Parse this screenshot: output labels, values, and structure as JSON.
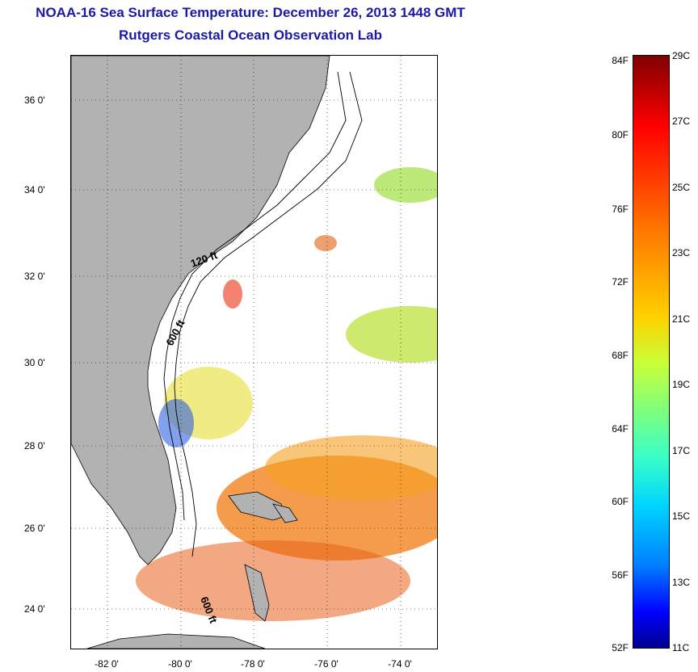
{
  "title": "NOAA-16 Sea Surface Temperature:  December 26, 2013 1448 GMT",
  "subtitle": "Rutgers Coastal Ocean Observation Lab",
  "map": {
    "lon_range": [
      -83,
      -73
    ],
    "lat_range": [
      23,
      37
    ],
    "lat_ticks": [
      "36 0'",
      "34 0'",
      "32 0'",
      "30 0'",
      "28 0'",
      "26 0'",
      "24 0'"
    ],
    "lon_ticks": [
      "-82 0'",
      "-80 0'",
      "-78 0'",
      "-76 0'",
      "-74 0'"
    ],
    "contour_labels": [
      "120 ft",
      "600 ft",
      "600 ft"
    ],
    "land_color": "#b2b2b2",
    "ocean_color": "#ffffff"
  },
  "colorbar": {
    "f_labels": [
      "84F",
      "80F",
      "76F",
      "72F",
      "68F",
      "64F",
      "60F",
      "56F",
      "52F"
    ],
    "c_labels": [
      "29C",
      "27C",
      "25C",
      "23C",
      "21C",
      "19C",
      "17C",
      "15C",
      "13C",
      "11C"
    ],
    "colormap": "jet",
    "range_c": [
      11,
      29
    ],
    "range_f": [
      52,
      84
    ]
  }
}
